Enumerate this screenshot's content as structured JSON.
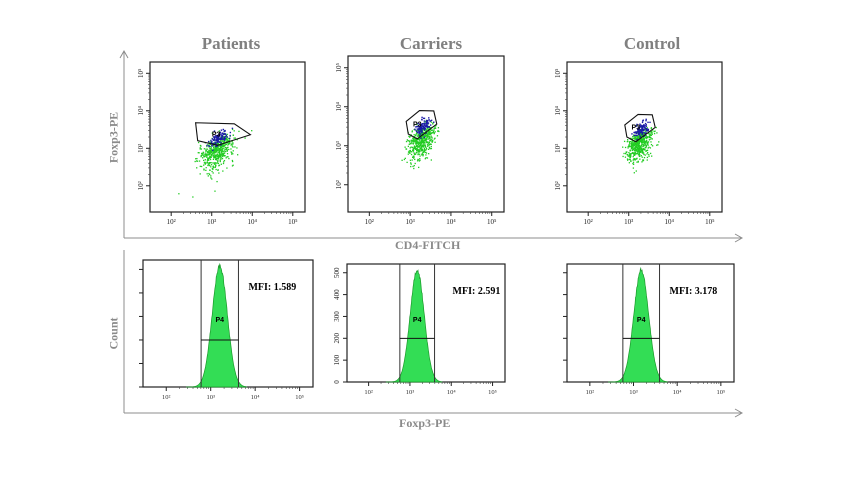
{
  "figure": {
    "columns": [
      "Patients",
      "Carriers",
      "Control"
    ],
    "row1_y_title": "Foxp3-PE",
    "row1_x_title": "CD4-FITCH",
    "row2_y_title": "Count",
    "row2_x_title": "Foxp3-PE"
  },
  "chart_data": [
    {
      "type": "scatter",
      "title": "Patients",
      "xlabel": "CD4-FITCH",
      "ylabel": "Foxp3-PE",
      "scale": "log",
      "xlim": [
        30,
        200000
      ],
      "ylim": [
        20,
        200000
      ],
      "x_ticks": [
        "10²",
        "10³",
        "10⁴",
        "10⁵"
      ],
      "y_ticks": [
        "10²",
        "10³",
        "10⁴",
        "10⁵"
      ],
      "gate": "P3",
      "population_center": [
        1300,
        900
      ],
      "colors": {
        "population": "#22cc22",
        "gated": "#1a1aa6"
      }
    },
    {
      "type": "scatter",
      "title": "Carriers",
      "xlabel": "CD4-FITCH",
      "ylabel": "Foxp3-PE",
      "scale": "log",
      "xlim": [
        30,
        200000
      ],
      "ylim": [
        20,
        200000
      ],
      "x_ticks": [
        "10²",
        "10³",
        "10⁴",
        "10⁵"
      ],
      "y_ticks": [
        "10²",
        "10³",
        "10⁴",
        "10⁵"
      ],
      "gate": "P3",
      "population_center": [
        1800,
        1500
      ],
      "colors": {
        "population": "#22cc22",
        "gated": "#1a1aa6"
      }
    },
    {
      "type": "scatter",
      "title": "Control",
      "xlabel": "CD4-FITCH",
      "ylabel": "Foxp3-PE",
      "scale": "log",
      "xlim": [
        30,
        200000
      ],
      "ylim": [
        20,
        200000
      ],
      "x_ticks": [
        "10²",
        "10³",
        "10⁴",
        "10⁵"
      ],
      "y_ticks": [
        "10²",
        "10³",
        "10⁴",
        "10⁵"
      ],
      "gate": "P3",
      "population_center": [
        1800,
        1500
      ],
      "colors": {
        "population": "#22cc22",
        "gated": "#1a1aa6"
      }
    },
    {
      "type": "area",
      "title": "Patients",
      "xlabel": "Foxp3-PE",
      "ylabel": "Count",
      "scale": "log",
      "gate": "P4",
      "annotation": "MFI: 1.589",
      "x_ticks": [
        "10²",
        "10³",
        "10⁴",
        "10⁵"
      ],
      "peak_x": 1600,
      "fill": "#33dd55"
    },
    {
      "type": "area",
      "title": "Carriers",
      "xlabel": "Foxp3-PE",
      "ylabel": "Count",
      "scale": "log",
      "gate": "P4",
      "annotation": "MFI: 2.591",
      "x_ticks": [
        "10²",
        "10³",
        "10⁴",
        "10⁵"
      ],
      "y_ticks": [
        "0",
        "100",
        "200",
        "300",
        "400",
        "500"
      ],
      "ylim": [
        0,
        540
      ],
      "peak_x": 1500,
      "peak_count": 520,
      "fill": "#33dd55"
    },
    {
      "type": "area",
      "title": "Control",
      "xlabel": "Foxp3-PE",
      "ylabel": "Count",
      "scale": "log",
      "gate": "P4",
      "annotation": "MFI: 3.178",
      "x_ticks": [
        "10²",
        "10³",
        "10⁴",
        "10⁵"
      ],
      "peak_x": 1500,
      "fill": "#33dd55"
    }
  ]
}
